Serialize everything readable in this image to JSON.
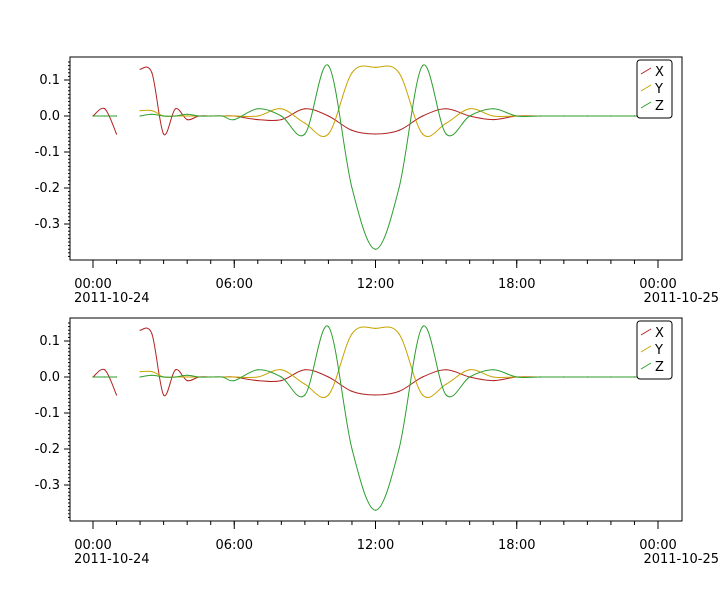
{
  "colors": {
    "X": "#b22222",
    "Y": "#c8a400",
    "Z": "#2e9e2e",
    "axis": "#000000",
    "background": "#ffffff"
  },
  "chart_data": [
    {
      "type": "line",
      "title": "",
      "xlabel": "",
      "ylabel": "",
      "xlim": [
        "2011-10-24T00:00",
        "2011-10-25T00:00"
      ],
      "ylim": [
        -0.4,
        0.16
      ],
      "grid": false,
      "legend": {
        "position": "top-right",
        "entries": [
          "X",
          "Y",
          "Z"
        ]
      },
      "x_ticks": [
        {
          "time": "00:00",
          "date": "2011-10-24"
        },
        {
          "time": "06:00",
          "date": ""
        },
        {
          "time": "12:00",
          "date": ""
        },
        {
          "time": "18:00",
          "date": ""
        },
        {
          "time": "00:00",
          "date": "2011-10-25"
        }
      ],
      "y_ticks": [
        "0.1",
        "0.0",
        "-0.1",
        "-0.2",
        "-0.3"
      ],
      "x_hours": [
        0,
        0.5,
        1,
        1.5,
        2,
        2.5,
        3,
        3.5,
        4,
        4.5,
        5,
        5.5,
        6,
        7,
        8,
        9,
        10,
        11,
        12,
        13,
        14,
        15,
        16,
        17,
        18,
        19,
        20,
        21,
        22,
        23,
        24
      ],
      "series": [
        {
          "name": "X",
          "values": [
            0.0,
            0.02,
            -0.05,
            null,
            0.13,
            0.12,
            -0.05,
            0.02,
            -0.01,
            0.0,
            0.0,
            0.0,
            0.0,
            -0.01,
            -0.01,
            0.02,
            0.0,
            -0.04,
            -0.05,
            -0.04,
            0.0,
            0.02,
            0.0,
            -0.01,
            0.0,
            0.0,
            0.0,
            0.0,
            0.0,
            0.0,
            0.0
          ]
        },
        {
          "name": "Y",
          "values": [
            0.0,
            0.0,
            0.0,
            null,
            0.015,
            0.015,
            0.0,
            0.0,
            0.0,
            0.0,
            0.0,
            0.0,
            0.0,
            0.0,
            0.02,
            -0.02,
            -0.05,
            0.12,
            0.135,
            0.12,
            -0.05,
            -0.02,
            0.02,
            0.0,
            0.0,
            0.0,
            0.0,
            0.0,
            0.0,
            0.0,
            0.0
          ]
        },
        {
          "name": "Z",
          "values": [
            0.0,
            0.0,
            0.0,
            null,
            0.0,
            0.005,
            0.0,
            0.0,
            0.005,
            0.0,
            0.0,
            0.0,
            -0.01,
            0.02,
            0.0,
            -0.05,
            0.14,
            -0.2,
            -0.37,
            -0.2,
            0.14,
            -0.05,
            0.0,
            0.02,
            0.0,
            0.0,
            0.0,
            0.0,
            0.0,
            0.0,
            0.0
          ]
        }
      ]
    },
    {
      "type": "line",
      "title": "",
      "xlabel": "",
      "ylabel": "",
      "xlim": [
        "2011-10-24T00:00",
        "2011-10-25T00:00"
      ],
      "ylim": [
        -0.4,
        0.16
      ],
      "grid": false,
      "legend": {
        "position": "top-right",
        "entries": [
          "X",
          "Y",
          "Z"
        ]
      },
      "x_ticks": [
        {
          "time": "00:00",
          "date": "2011-10-24"
        },
        {
          "time": "06:00",
          "date": ""
        },
        {
          "time": "12:00",
          "date": ""
        },
        {
          "time": "18:00",
          "date": ""
        },
        {
          "time": "00:00",
          "date": "2011-10-25"
        }
      ],
      "y_ticks": [
        "0.1",
        "0.0",
        "-0.1",
        "-0.2",
        "-0.3"
      ],
      "x_hours": [
        0,
        0.5,
        1,
        1.5,
        2,
        2.5,
        3,
        3.5,
        4,
        4.5,
        5,
        5.5,
        6,
        7,
        8,
        9,
        10,
        11,
        12,
        13,
        14,
        15,
        16,
        17,
        18,
        19,
        20,
        21,
        22,
        23,
        24
      ],
      "series": [
        {
          "name": "X",
          "values": [
            0.0,
            0.02,
            -0.05,
            null,
            0.13,
            0.12,
            -0.05,
            0.02,
            -0.01,
            0.0,
            0.0,
            0.0,
            0.0,
            -0.01,
            -0.01,
            0.02,
            0.0,
            -0.04,
            -0.05,
            -0.04,
            0.0,
            0.02,
            0.0,
            -0.01,
            0.0,
            0.0,
            0.0,
            0.0,
            0.0,
            0.0,
            0.0
          ]
        },
        {
          "name": "Y",
          "values": [
            0.0,
            0.0,
            0.0,
            null,
            0.015,
            0.015,
            0.0,
            0.0,
            0.0,
            0.0,
            0.0,
            0.0,
            0.0,
            0.0,
            0.02,
            -0.02,
            -0.05,
            0.12,
            0.135,
            0.12,
            -0.05,
            -0.02,
            0.02,
            0.0,
            0.0,
            0.0,
            0.0,
            0.0,
            0.0,
            0.0,
            0.0
          ]
        },
        {
          "name": "Z",
          "values": [
            0.0,
            0.0,
            0.0,
            null,
            0.0,
            0.005,
            0.0,
            0.0,
            0.005,
            0.0,
            0.0,
            0.0,
            -0.01,
            0.02,
            0.0,
            -0.05,
            0.14,
            -0.2,
            -0.37,
            -0.2,
            0.14,
            -0.05,
            0.0,
            0.02,
            0.0,
            0.0,
            0.0,
            0.0,
            0.0,
            0.0,
            0.0
          ]
        }
      ]
    }
  ]
}
